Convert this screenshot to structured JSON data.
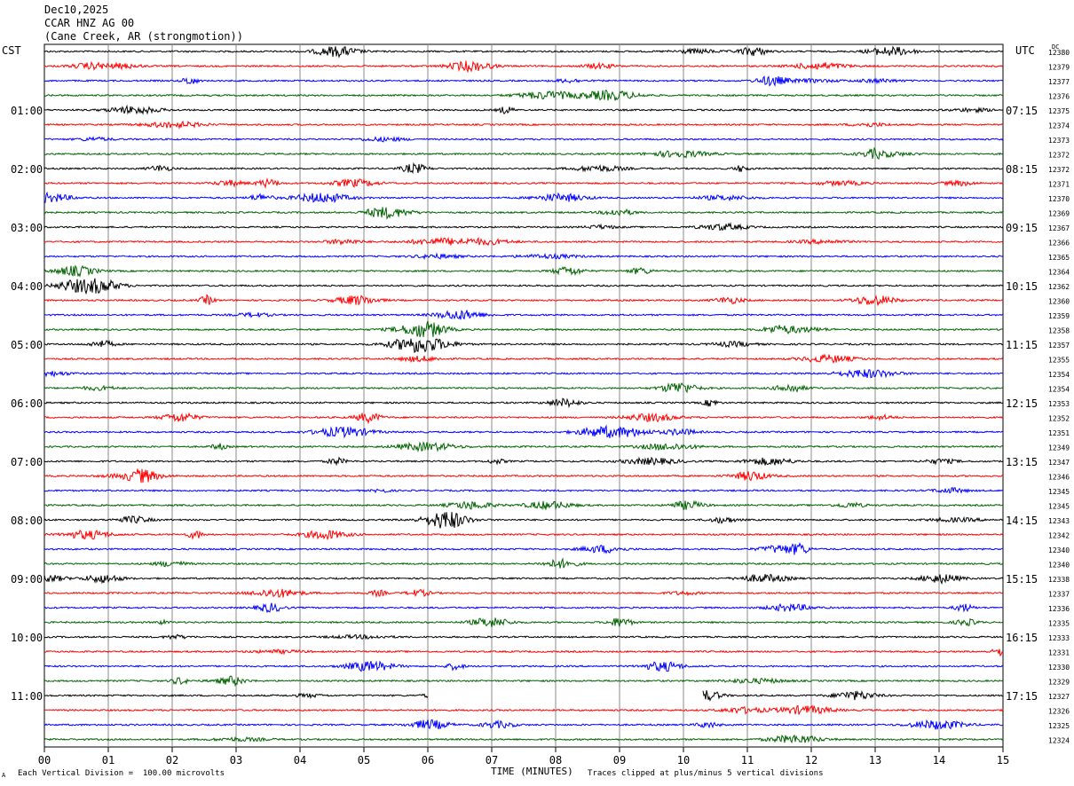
{
  "header": {
    "date": "Dec10,2025",
    "station": "CCAR HNZ AG 00",
    "location": "(Cane Creek, AR (strongmotion))"
  },
  "chart_data": {
    "type": "line",
    "title": "",
    "left_axis_title": "CST",
    "right_axis_title": "UTC",
    "dc_title": "DC",
    "xlabel": "TIME (MINUTES)",
    "xlim": [
      0,
      15
    ],
    "x_ticks": [
      "00",
      "01",
      "02",
      "03",
      "04",
      "05",
      "06",
      "07",
      "08",
      "09",
      "10",
      "11",
      "12",
      "13",
      "14",
      "15"
    ],
    "grid": true,
    "trace_colors": [
      "#000000",
      "#ff0000",
      "#0000ff",
      "#006400"
    ],
    "rows": 48,
    "left_hour_labels": [
      "01:00",
      "02:00",
      "03:00",
      "04:00",
      "05:00",
      "06:00",
      "07:00",
      "08:00",
      "09:00",
      "10:00",
      "11:00"
    ],
    "right_hour_labels": [
      "07:15",
      "08:15",
      "09:15",
      "10:15",
      "11:15",
      "12:15",
      "13:15",
      "14:15",
      "15:15",
      "16:15",
      "17:15"
    ],
    "dc_offsets": [
      "12380",
      "12379",
      "12377",
      "12376",
      "12375",
      "12374",
      "12373",
      "12372",
      "12372",
      "12371",
      "12370",
      "12369",
      "12367",
      "12366",
      "12365",
      "12364",
      "12362",
      "12360",
      "12359",
      "12358",
      "12357",
      "12355",
      "12354",
      "12354",
      "12353",
      "12352",
      "12351",
      "12349",
      "12347",
      "12346",
      "12345",
      "12345",
      "12343",
      "12342",
      "12340",
      "12340",
      "12338",
      "12337",
      "12336",
      "12335",
      "12333",
      "12331",
      "12330",
      "12329",
      "12327",
      "12326",
      "12325",
      "12324"
    ],
    "data_gap_minutes": [
      6.0,
      10.3
    ],
    "data_gap_row": 44
  },
  "footer": {
    "scale_note": "Each Vertical Division =  100.00 microvolts",
    "clip_note": "Traces clipped at plus/minus 5 vertical divisions",
    "corner_mark": "A"
  }
}
